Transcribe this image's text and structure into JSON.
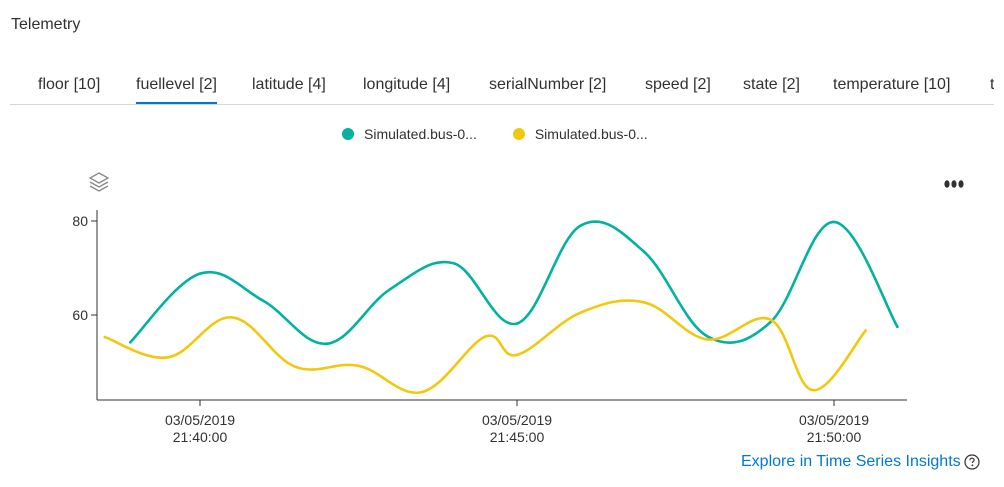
{
  "title": "Telemetry",
  "tabs": [
    {
      "label": "floor [10]",
      "active": false
    },
    {
      "label": "fuellevel [2]",
      "active": true
    },
    {
      "label": "latitude [4]",
      "active": false
    },
    {
      "label": "longitude [4]",
      "active": false
    },
    {
      "label": "serialNumber [2]",
      "active": false
    },
    {
      "label": "speed [2]",
      "active": false
    },
    {
      "label": "state [2]",
      "active": false
    },
    {
      "label": "temperature [10]",
      "active": false
    }
  ],
  "colors": {
    "series1": "#00b2a0",
    "series2": "#f2c80f",
    "accent": "#0078d4"
  },
  "icons": {
    "layers": "layers-icon",
    "more": "more-options-icon",
    "help": "help-icon"
  },
  "explore_link": "Explore in Time Series Insights",
  "chart_data": {
    "type": "line",
    "title": "",
    "xlabel": "",
    "ylabel": "",
    "x_ticks": [
      {
        "date": "03/05/2019",
        "time": "21:40:00"
      },
      {
        "date": "03/05/2019",
        "time": "21:45:00"
      },
      {
        "date": "03/05/2019",
        "time": "21:50:00"
      }
    ],
    "y_ticks": [
      80,
      60
    ],
    "ylim": [
      42,
      82
    ],
    "xlim": [
      "21:38:30",
      "21:51:10"
    ],
    "grid": false,
    "legend_position": "top",
    "series": [
      {
        "name": "Simulated.bus-0...",
        "color": "#00b2a0",
        "points": [
          [
            "21:38:54",
            54.2
          ],
          [
            "21:40:00",
            68.8
          ],
          [
            "21:41:00",
            63.0
          ],
          [
            "21:42:00",
            53.9
          ],
          [
            "21:43:00",
            65.5
          ],
          [
            "21:44:00",
            71.0
          ],
          [
            "21:45:00",
            58.2
          ],
          [
            "21:46:00",
            79.0
          ],
          [
            "21:47:00",
            73.5
          ],
          [
            "21:48:00",
            55.5
          ],
          [
            "21:49:00",
            58.5
          ],
          [
            "21:50:00",
            79.8
          ],
          [
            "21:51:00",
            57.5
          ]
        ]
      },
      {
        "name": "Simulated.bus-0...",
        "color": "#f2c80f",
        "points": [
          [
            "21:38:30",
            55.3
          ],
          [
            "21:39:30",
            51.0
          ],
          [
            "21:40:30",
            59.5
          ],
          [
            "21:41:30",
            49.0
          ],
          [
            "21:42:30",
            49.2
          ],
          [
            "21:43:30",
            43.6
          ],
          [
            "21:44:30",
            55.4
          ],
          [
            "21:45:00",
            51.5
          ],
          [
            "21:46:00",
            60.5
          ],
          [
            "21:47:00",
            62.7
          ],
          [
            "21:48:00",
            54.8
          ],
          [
            "21:49:00",
            59.0
          ],
          [
            "21:49:40",
            44.0
          ],
          [
            "21:50:30",
            56.7
          ]
        ]
      }
    ]
  }
}
